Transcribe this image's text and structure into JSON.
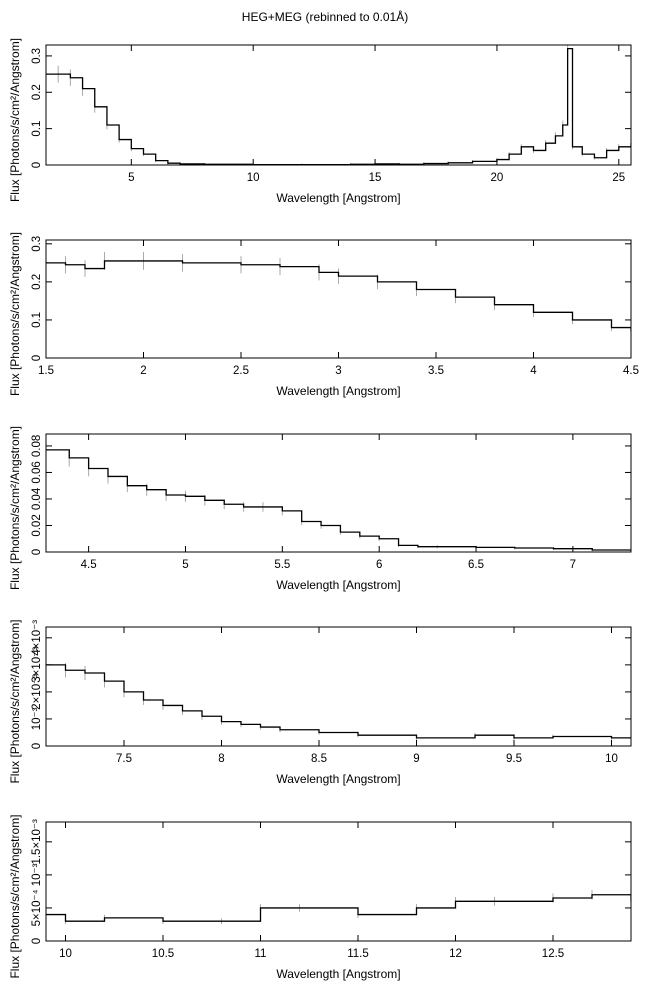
{
  "title": "HEG+MEG (rebinned to 0.01Å)",
  "colors": {
    "line": "#000000",
    "error_bar": "#aaaaaa",
    "frame": "#000000",
    "background": "#ffffff"
  },
  "chart_data": [
    {
      "type": "line",
      "step": true,
      "xlabel": "Wavelength [Angstrom]",
      "ylabel": "Flux [Photons/s/cm²/Angstrom]",
      "xlim": [
        1.5,
        25.5
      ],
      "ylim": [
        0,
        0.33
      ],
      "xticks": [
        5,
        10,
        15,
        20,
        25
      ],
      "xtick_labels": [
        "5",
        "10",
        "15",
        "20",
        "25"
      ],
      "yticks": [
        0,
        0.1,
        0.2,
        0.3
      ],
      "ytick_labels": [
        "0",
        "0.1",
        "0.2",
        "0.3"
      ],
      "series": [
        {
          "values": [
            [
              1.5,
              0.25
            ],
            [
              2,
              0.25
            ],
            [
              2.5,
              0.24
            ],
            [
              3,
              0.21
            ],
            [
              3.5,
              0.16
            ],
            [
              4,
              0.11
            ],
            [
              4.5,
              0.07
            ],
            [
              5,
              0.045
            ],
            [
              5.5,
              0.03
            ],
            [
              6,
              0.012
            ],
            [
              6.5,
              0.005
            ],
            [
              7,
              0.003
            ],
            [
              8,
              0.002
            ],
            [
              10,
              0.001
            ],
            [
              12,
              0.001
            ],
            [
              14,
              0.002
            ],
            [
              15,
              0.003
            ],
            [
              16,
              0.002
            ],
            [
              17,
              0.004
            ],
            [
              18,
              0.006
            ],
            [
              19,
              0.01
            ],
            [
              20,
              0.015
            ],
            [
              20.5,
              0.03
            ],
            [
              21,
              0.05
            ],
            [
              21.5,
              0.04
            ],
            [
              22,
              0.06
            ],
            [
              22.4,
              0.08
            ],
            [
              22.7,
              0.11
            ],
            [
              22.9,
              0.32
            ],
            [
              23.1,
              0.05
            ],
            [
              23.5,
              0.03
            ],
            [
              24,
              0.02
            ],
            [
              24.5,
              0.04
            ],
            [
              25,
              0.05
            ],
            [
              25.5,
              0.06
            ]
          ]
        }
      ]
    },
    {
      "type": "line",
      "step": true,
      "xlabel": "Wavelength [Angstrom]",
      "ylabel": "Flux [Photons/s/cm²/Angstrom]",
      "xlim": [
        1.5,
        4.5
      ],
      "ylim": [
        0,
        0.31
      ],
      "xticks": [
        1.5,
        2,
        2.5,
        3,
        3.5,
        4,
        4.5
      ],
      "xtick_labels": [
        "1.5",
        "2",
        "2.5",
        "3",
        "3.5",
        "4",
        "4.5"
      ],
      "yticks": [
        0,
        0.1,
        0.2,
        0.3
      ],
      "ytick_labels": [
        "0",
        "0.1",
        "0.2",
        "0.3"
      ],
      "series": [
        {
          "values": [
            [
              1.5,
              0.25
            ],
            [
              1.6,
              0.245
            ],
            [
              1.7,
              0.235
            ],
            [
              1.8,
              0.255
            ],
            [
              2,
              0.255
            ],
            [
              2.2,
              0.25
            ],
            [
              2.5,
              0.245
            ],
            [
              2.7,
              0.24
            ],
            [
              2.9,
              0.225
            ],
            [
              3,
              0.215
            ],
            [
              3.2,
              0.2
            ],
            [
              3.4,
              0.18
            ],
            [
              3.6,
              0.16
            ],
            [
              3.8,
              0.14
            ],
            [
              4,
              0.12
            ],
            [
              4.2,
              0.1
            ],
            [
              4.4,
              0.08
            ],
            [
              4.5,
              0.07
            ]
          ]
        }
      ]
    },
    {
      "type": "line",
      "step": true,
      "xlabel": "Wavelength [Angstrom]",
      "ylabel": "Flux [Photons/s/cm²/Angstrom]",
      "xlim": [
        4.28,
        7.3
      ],
      "ylim": [
        0,
        0.089
      ],
      "xticks": [
        4.5,
        5,
        5.5,
        6,
        6.5,
        7
      ],
      "xtick_labels": [
        "4.5",
        "5",
        "5.5",
        "6",
        "6.5",
        "7"
      ],
      "yticks": [
        0,
        0.02,
        0.04,
        0.06,
        0.08
      ],
      "ytick_labels": [
        "0",
        "0.02",
        "0.04",
        "0.06",
        "0.08"
      ],
      "series": [
        {
          "values": [
            [
              4.28,
              0.077
            ],
            [
              4.4,
              0.071
            ],
            [
              4.5,
              0.063
            ],
            [
              4.6,
              0.057
            ],
            [
              4.7,
              0.05
            ],
            [
              4.8,
              0.047
            ],
            [
              4.9,
              0.043
            ],
            [
              5,
              0.042
            ],
            [
              5.1,
              0.039
            ],
            [
              5.2,
              0.036
            ],
            [
              5.3,
              0.034
            ],
            [
              5.4,
              0.034
            ],
            [
              5.5,
              0.031
            ],
            [
              5.6,
              0.023
            ],
            [
              5.7,
              0.02
            ],
            [
              5.8,
              0.015
            ],
            [
              5.9,
              0.012
            ],
            [
              6,
              0.01
            ],
            [
              6.1,
              0.005
            ],
            [
              6.2,
              0.004
            ],
            [
              6.3,
              0.004
            ],
            [
              6.5,
              0.0035
            ],
            [
              6.7,
              0.003
            ],
            [
              6.9,
              0.0025
            ],
            [
              7.1,
              0.0015
            ],
            [
              7.3,
              0.001
            ]
          ]
        }
      ]
    },
    {
      "type": "line",
      "step": true,
      "xlabel": "Wavelength [Angstrom]",
      "ylabel": "Flux [Photons/s/cm²/Angstrom]",
      "xlim": [
        7.1,
        10.1
      ],
      "ylim": [
        0,
        0.0044
      ],
      "xticks": [
        7.5,
        8,
        8.5,
        9,
        9.5,
        10
      ],
      "xtick_labels": [
        "7.5",
        "8",
        "8.5",
        "9",
        "9.5",
        "10"
      ],
      "yticks": [
        0,
        0.001,
        0.002,
        0.003,
        0.004
      ],
      "ytick_labels": [
        "0",
        "10⁻³",
        "2×10⁻³",
        "3×10⁻³",
        "4×10⁻³"
      ],
      "series": [
        {
          "values": [
            [
              7.1,
              0.003
            ],
            [
              7.2,
              0.0028
            ],
            [
              7.3,
              0.0027
            ],
            [
              7.4,
              0.0024
            ],
            [
              7.5,
              0.002
            ],
            [
              7.6,
              0.0017
            ],
            [
              7.7,
              0.0015
            ],
            [
              7.8,
              0.0013
            ],
            [
              7.9,
              0.0011
            ],
            [
              8,
              0.0009
            ],
            [
              8.1,
              0.0008
            ],
            [
              8.2,
              0.0007
            ],
            [
              8.3,
              0.0006
            ],
            [
              8.5,
              0.0005
            ],
            [
              8.7,
              0.0004
            ],
            [
              9,
              0.0003
            ],
            [
              9.3,
              0.0004
            ],
            [
              9.5,
              0.0003
            ],
            [
              9.7,
              0.00035
            ],
            [
              10,
              0.0003
            ],
            [
              10.1,
              0.0003
            ]
          ]
        }
      ]
    },
    {
      "type": "line",
      "step": true,
      "xlabel": "Wavelength [Angstrom]",
      "ylabel": "Flux [Photons/s/cm²/Angstrom]",
      "xlim": [
        9.9,
        12.9
      ],
      "ylim": [
        0,
        0.0018
      ],
      "xticks": [
        10,
        10.5,
        11,
        11.5,
        12,
        12.5
      ],
      "xtick_labels": [
        "10",
        "10.5",
        "11",
        "11.5",
        "12",
        "12.5"
      ],
      "yticks": [
        0,
        0.0005,
        0.001,
        0.0015
      ],
      "ytick_labels": [
        "0",
        "5×10⁻⁴",
        "10⁻³",
        "1.5×10⁻³"
      ],
      "series": [
        {
          "values": [
            [
              9.9,
              0.0004
            ],
            [
              10,
              0.0003
            ],
            [
              10.2,
              0.00035
            ],
            [
              10.5,
              0.0003
            ],
            [
              10.8,
              0.0003
            ],
            [
              11,
              0.0005
            ],
            [
              11.2,
              0.0005
            ],
            [
              11.5,
              0.0004
            ],
            [
              11.8,
              0.0005
            ],
            [
              12,
              0.0006
            ],
            [
              12.2,
              0.0006
            ],
            [
              12.5,
              0.00065
            ],
            [
              12.7,
              0.0007
            ],
            [
              12.9,
              0.0006
            ]
          ]
        }
      ]
    }
  ]
}
